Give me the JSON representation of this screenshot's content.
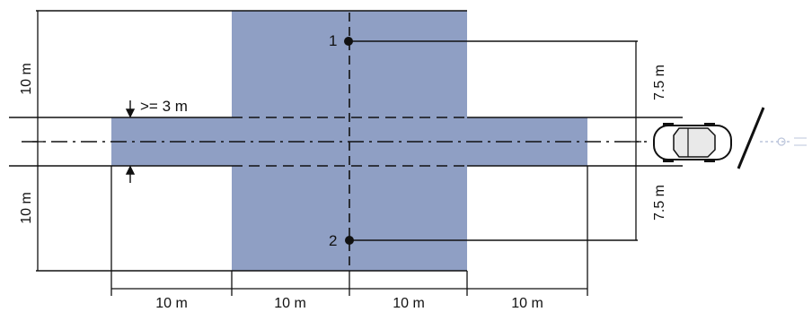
{
  "colors": {
    "zone_fill": "#8f9fc4",
    "line": "#111111",
    "background": "#ffffff"
  },
  "labels": {
    "dim_top_left": "10 m",
    "dim_bottom_left": "10 m",
    "lane_width": ">= 3 m",
    "dim_right_top": "7.5 m",
    "dim_right_bottom": "7.5 m",
    "dim_bottom": [
      "10 m",
      "10 m",
      "10 m",
      "10 m"
    ],
    "point_1": "1",
    "point_2": "2"
  },
  "icons": {
    "vehicle": "car-icon",
    "sensor": "sensor-beam-icon"
  }
}
